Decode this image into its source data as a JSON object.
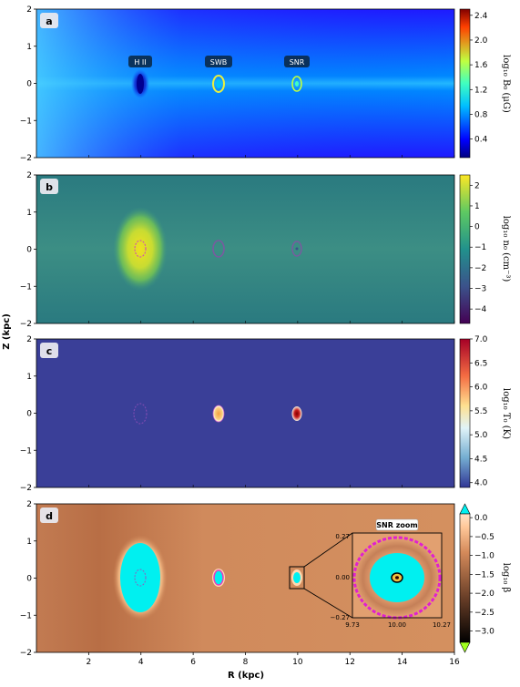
{
  "figure": {
    "xlabel": "R (kpc)",
    "ylabel": "Z (kpc)"
  },
  "chart_data": [
    {
      "type": "heatmap",
      "panel_label": "a",
      "x_range": [
        0,
        16
      ],
      "y_range": [
        -2,
        2
      ],
      "x_ticks": [
        "2",
        "4",
        "6",
        "8",
        "10",
        "12",
        "14",
        "16"
      ],
      "y_ticks": [
        "2",
        "1",
        "0",
        "−1",
        "−2"
      ],
      "colorbar": {
        "label": "log₁₀ B₀ (μG)",
        "ticks": [
          "0.4",
          "0.8",
          "1.2",
          "1.6",
          "2.0",
          "2.4"
        ],
        "range": [
          0.1,
          2.5
        ],
        "colormap": "jet"
      },
      "annotations": [
        {
          "text": "H II",
          "x": 4,
          "y": 0.6
        },
        {
          "text": "SWB",
          "x": 7,
          "y": 0.6
        },
        {
          "text": "SNR",
          "x": 10,
          "y": 0.6
        }
      ]
    },
    {
      "type": "heatmap",
      "panel_label": "b",
      "x_range": [
        0,
        16
      ],
      "y_range": [
        -2,
        2
      ],
      "x_ticks": [
        "2",
        "4",
        "6",
        "8",
        "10",
        "12",
        "14",
        "16"
      ],
      "y_ticks": [
        "2",
        "1",
        "0",
        "−1",
        "−2"
      ],
      "colorbar": {
        "label": "log₁₀ n₀ (cm⁻³)",
        "ticks": [
          "2",
          "1",
          "0",
          "−1",
          "−2",
          "−3",
          "−4"
        ],
        "range": [
          -4.7,
          2.5
        ],
        "colormap": "viridis"
      }
    },
    {
      "type": "heatmap",
      "panel_label": "c",
      "x_range": [
        0,
        16
      ],
      "y_range": [
        -2,
        2
      ],
      "x_ticks": [
        "2",
        "4",
        "6",
        "8",
        "10",
        "12",
        "14",
        "16"
      ],
      "y_ticks": [
        "2",
        "1",
        "0",
        "−1",
        "−2"
      ],
      "colorbar": {
        "label": "log₁₀ T₀ (K)",
        "ticks": [
          "7.0",
          "6.5",
          "6.0",
          "5.5",
          "5.0",
          "4.5",
          "4.0"
        ],
        "range": [
          3.9,
          7.0
        ],
        "colormap": "RdYlBu_r"
      }
    },
    {
      "type": "heatmap",
      "panel_label": "d",
      "x_range": [
        0,
        16
      ],
      "y_range": [
        -2,
        2
      ],
      "x_ticks": [
        "2",
        "4",
        "6",
        "8",
        "10",
        "12",
        "14",
        "16"
      ],
      "y_ticks": [
        "2",
        "1",
        "0",
        "−1",
        "−2"
      ],
      "colorbar": {
        "label": "log₁₀ β",
        "ticks": [
          "0.0",
          "−0.5",
          "−1.0",
          "−1.5",
          "−2.0",
          "−2.5",
          "−3.0"
        ],
        "range": [
          -3.3,
          0.1
        ],
        "colormap": "copper",
        "extend": "both"
      },
      "inset": {
        "title": "SNR zoom",
        "x_ticks": [
          "9.73",
          "10.00",
          "10.27"
        ],
        "y_ticks": [
          "0.27",
          "0.00",
          "−0.27"
        ],
        "x_range": [
          9.73,
          10.27
        ],
        "y_range": [
          -0.27,
          0.27
        ]
      }
    }
  ]
}
